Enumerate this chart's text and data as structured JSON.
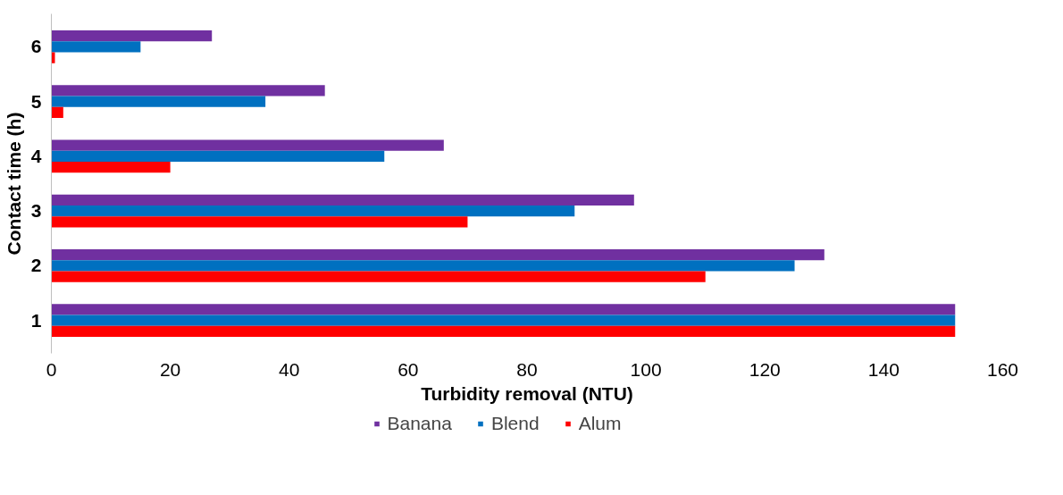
{
  "chart_data": {
    "type": "bar",
    "orientation": "horizontal",
    "xlabel": "Turbidity removal (NTU)",
    "ylabel": "Contact time (h)",
    "categories": [
      "6",
      "5",
      "4",
      "3",
      "2",
      "1"
    ],
    "series": [
      {
        "name": "Banana",
        "color": "#7030a0",
        "values": [
          27,
          46,
          66,
          98,
          130,
          152
        ]
      },
      {
        "name": "Blend",
        "color": "#0070c0",
        "values": [
          15,
          36,
          56,
          88,
          125,
          152
        ]
      },
      {
        "name": "Alum",
        "color": "#ff0000",
        "values": [
          0.6,
          2,
          20,
          70,
          110,
          152
        ]
      }
    ],
    "xlim": [
      0,
      160
    ],
    "xticks": [
      0,
      20,
      40,
      60,
      80,
      100,
      120,
      140,
      160
    ],
    "grid": false,
    "legend": "bottom"
  }
}
